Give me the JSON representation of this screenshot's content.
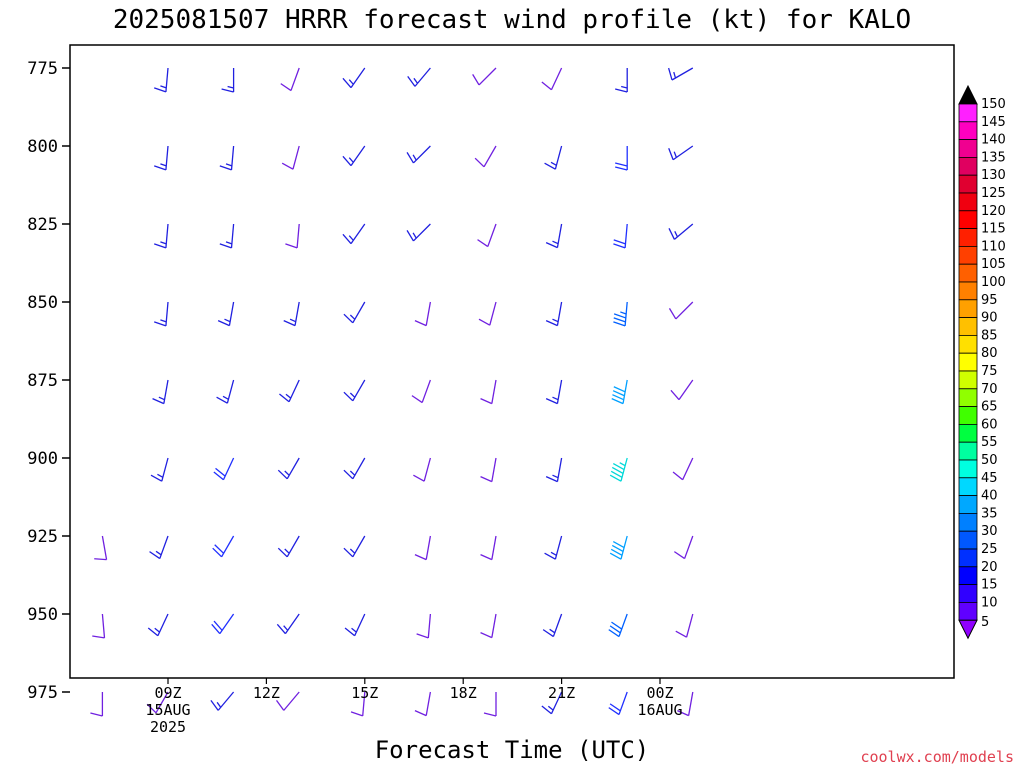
{
  "chart_data": {
    "type": "wind-profile",
    "title": "2025081507 HRRR forecast wind profile (kt) for KALO",
    "xlabel": "Forecast Time (UTC)",
    "ylabel": "",
    "credit": "coolwx.com/models",
    "y_ticks": [
      "775",
      "800",
      "825",
      "850",
      "875",
      "900",
      "925",
      "950",
      "975"
    ],
    "x_ticks": [
      {
        "label": "09Z",
        "line2": "15AUG",
        "line3": "2025"
      },
      {
        "label": "12Z",
        "line2": "",
        "line3": ""
      },
      {
        "label": "15Z",
        "line2": "",
        "line3": ""
      },
      {
        "label": "18Z",
        "line2": "",
        "line3": ""
      },
      {
        "label": "21Z",
        "line2": "",
        "line3": ""
      },
      {
        "label": "00Z",
        "line2": "16AUG",
        "line3": ""
      }
    ],
    "ylim": [
      979,
      775
    ],
    "pressure_levels_mb": [
      775,
      800,
      825,
      850,
      875,
      900,
      925,
      950,
      975
    ],
    "forecast_hours": [
      7,
      9,
      11,
      13,
      15,
      17,
      19,
      21,
      23,
      25
    ],
    "columns": [
      {
        "time": "07Z",
        "speeds_kt": [
          null,
          null,
          null,
          null,
          null,
          null,
          10,
          10,
          10
        ],
        "dirs_deg": [
          null,
          null,
          null,
          null,
          null,
          null,
          170,
          175,
          180
        ]
      },
      {
        "time": "09Z",
        "speeds_kt": [
          15,
          15,
          15,
          15,
          15,
          15,
          15,
          15,
          10
        ],
        "dirs_deg": [
          185,
          185,
          185,
          185,
          190,
          195,
          200,
          205,
          210
        ]
      },
      {
        "time": "11Z",
        "speeds_kt": [
          15,
          15,
          15,
          15,
          15,
          20,
          20,
          20,
          15
        ],
        "dirs_deg": [
          180,
          185,
          185,
          190,
          195,
          205,
          210,
          215,
          220
        ]
      },
      {
        "time": "13Z",
        "speeds_kt": [
          10,
          10,
          10,
          15,
          15,
          15,
          15,
          15,
          10
        ],
        "dirs_deg": [
          200,
          195,
          185,
          190,
          205,
          210,
          210,
          215,
          220
        ]
      },
      {
        "time": "15Z",
        "speeds_kt": [
          15,
          15,
          15,
          15,
          15,
          15,
          15,
          15,
          10
        ],
        "dirs_deg": [
          215,
          215,
          215,
          210,
          210,
          210,
          210,
          205,
          185
        ]
      },
      {
        "time": "17Z",
        "speeds_kt": [
          15,
          15,
          15,
          10,
          10,
          10,
          10,
          10,
          10
        ],
        "dirs_deg": [
          220,
          225,
          225,
          190,
          200,
          195,
          190,
          185,
          190
        ]
      },
      {
        "time": "19Z",
        "speeds_kt": [
          10,
          10,
          10,
          10,
          10,
          10,
          10,
          10,
          10
        ],
        "dirs_deg": [
          225,
          210,
          200,
          195,
          190,
          190,
          190,
          190,
          180
        ]
      },
      {
        "time": "21Z",
        "speeds_kt": [
          10,
          15,
          15,
          15,
          15,
          15,
          15,
          15,
          15
        ],
        "dirs_deg": [
          205,
          195,
          190,
          190,
          190,
          190,
          195,
          200,
          205
        ]
      },
      {
        "time": "23Z",
        "speeds_kt": [
          15,
          20,
          20,
          35,
          40,
          45,
          40,
          30,
          20
        ],
        "dirs_deg": [
          180,
          180,
          185,
          185,
          190,
          195,
          195,
          200,
          200
        ]
      },
      {
        "time": "01Z",
        "speeds_kt": [
          15,
          15,
          15,
          10,
          10,
          10,
          10,
          10,
          10
        ],
        "dirs_deg": [
          240,
          235,
          230,
          225,
          215,
          205,
          200,
          195,
          190
        ]
      }
    ],
    "surface_pressure_mb": [
      979,
      979,
      979.5,
      979.5,
      980,
      979.5,
      979.5,
      979,
      978.5,
      978,
      979,
      979.5,
      979.5,
      979
    ],
    "colorbar": {
      "labels": [
        "150",
        "145",
        "140",
        "135",
        "130",
        "125",
        "120",
        "115",
        "110",
        "105",
        "100",
        "95",
        "90",
        "85",
        "80",
        "75",
        "70",
        "65",
        "60",
        "55",
        "50",
        "45",
        "40",
        "35",
        "30",
        "25",
        "20",
        "15",
        "10",
        "5"
      ],
      "colors": [
        "#ff20ff",
        "#ff00c0",
        "#f00090",
        "#e00060",
        "#e00030",
        "#f00010",
        "#ff0000",
        "#ff2000",
        "#ff4000",
        "#ff6000",
        "#ff8000",
        "#ffa000",
        "#ffc000",
        "#ffe000",
        "#ffff00",
        "#d0ff00",
        "#90ff00",
        "#40ff00",
        "#00ff40",
        "#00ffa0",
        "#00ffe0",
        "#00d8ff",
        "#00a8ff",
        "#0080ff",
        "#0058ff",
        "#0030ff",
        "#0000ff",
        "#3000ff",
        "#6000ff",
        "#9000ff"
      ]
    },
    "grid": false,
    "legend": "right"
  }
}
